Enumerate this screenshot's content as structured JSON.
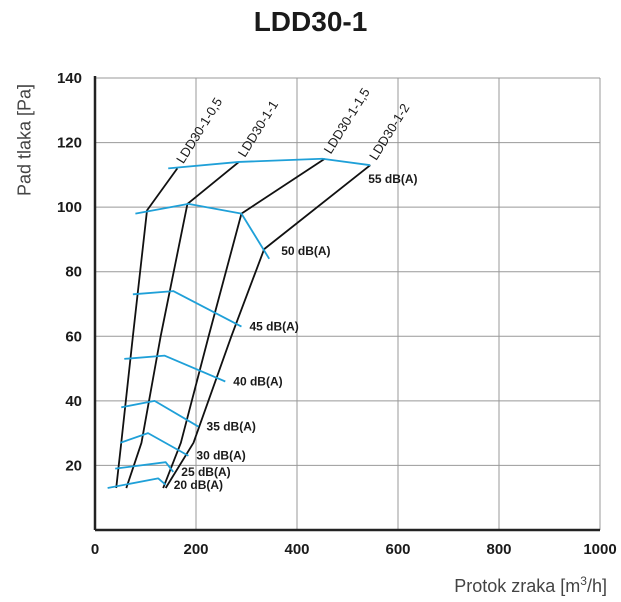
{
  "chart_data": {
    "type": "line",
    "title": "LDD30-1",
    "ylabel": "Pad tlaka [Pa]",
    "xlabel": {
      "text": "Protok zraka [m",
      "sup": "3",
      "suffix": "/h]"
    },
    "xlim": [
      0,
      1000
    ],
    "ylim": [
      0,
      140
    ],
    "xticks": [
      0,
      200,
      400,
      600,
      800,
      1000
    ],
    "yticks": [
      20,
      40,
      60,
      80,
      100,
      120,
      140
    ],
    "grid": true,
    "colors": {
      "curve": "#111111",
      "isoline": "#1fa0d8",
      "grid": "#999999",
      "axis": "#222222"
    },
    "series": [
      {
        "name": "LDD30-1-0,5",
        "x": [
          42,
          52,
          75,
          103,
          163
        ],
        "y": [
          13,
          27,
          60,
          99,
          112
        ]
      },
      {
        "name": "LDD30-1-1",
        "x": [
          62,
          92,
          130,
          183,
          285
        ],
        "y": [
          13,
          27,
          60,
          101,
          114
        ]
      },
      {
        "name": "LDD30-1-1,5",
        "x": [
          135,
          170,
          225,
          290,
          455
        ],
        "y": [
          13,
          27,
          60,
          98,
          115
        ]
      },
      {
        "name": "LDD30-1-2",
        "x": [
          140,
          195,
          270,
          335,
          545
        ],
        "y": [
          13,
          27,
          60,
          87,
          113
        ]
      }
    ],
    "sound_levels": [
      {
        "label": "20 dB(A)",
        "x": [
          25,
          125,
          140
        ],
        "y": [
          13,
          16,
          14
        ]
      },
      {
        "label": "25 dB(A)",
        "x": [
          40,
          140,
          155
        ],
        "y": [
          19,
          21,
          18
        ]
      },
      {
        "label": "30 dB(A)",
        "x": [
          50,
          105,
          185
        ],
        "y": [
          27,
          30,
          23
        ]
      },
      {
        "label": "35 dB(A)",
        "x": [
          52,
          118,
          205
        ],
        "y": [
          38,
          40,
          32
        ]
      },
      {
        "label": "40 dB(A)",
        "x": [
          58,
          138,
          258
        ],
        "y": [
          53,
          54,
          46
        ]
      },
      {
        "label": "45 dB(A)",
        "x": [
          75,
          155,
          290
        ],
        "y": [
          73,
          74,
          63
        ]
      },
      {
        "label": "50 dB(A)",
        "x": [
          80,
          185,
          290,
          345
        ],
        "y": [
          98,
          101,
          98,
          84
        ]
      },
      {
        "label": "55 dB(A)",
        "x": [
          145,
          285,
          450,
          545
        ],
        "y": [
          112,
          114,
          115,
          113
        ]
      }
    ]
  }
}
